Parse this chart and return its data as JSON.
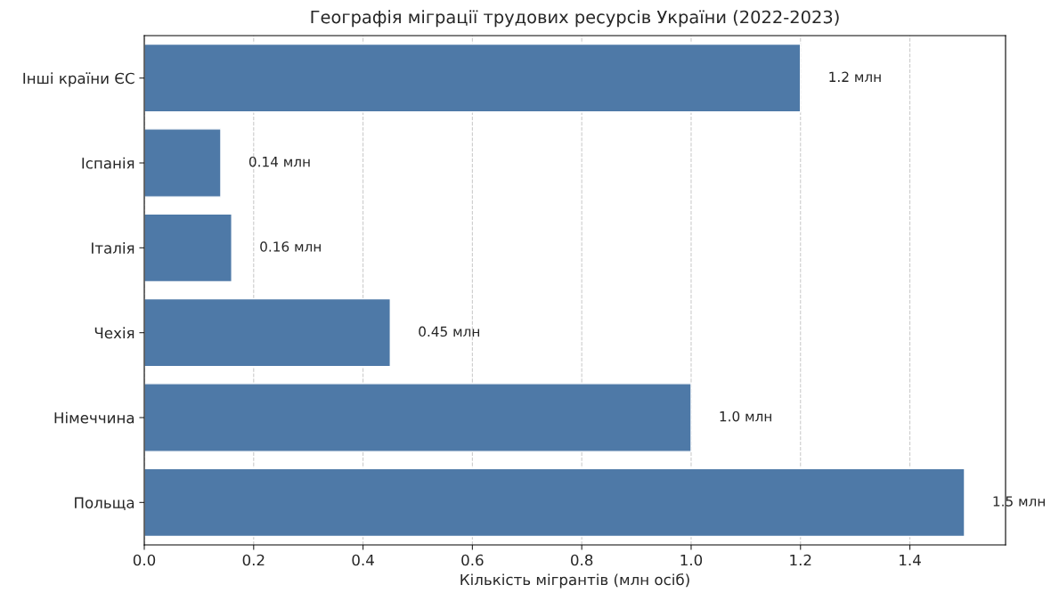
{
  "chart_data": {
    "type": "bar",
    "orientation": "horizontal",
    "title": "Географія міграції трудових ресурсів України (2022-2023)",
    "xlabel": "Кількість мігрантів (млн осіб)",
    "categories": [
      "Інші країни ЄС",
      "Іспанія",
      "Італія",
      "Чехія",
      "Німеччина",
      "Польща"
    ],
    "values": [
      1.2,
      0.14,
      0.16,
      0.45,
      1.0,
      1.5
    ],
    "color": "#4e79a7",
    "value_labels": [
      "1.2 млн",
      "0.14 млн",
      "0.16 млн",
      "0.45 млн",
      "1.0 млн",
      "1.5 млн"
    ],
    "xlim": [
      0,
      1.575
    ],
    "xticks": [
      {
        "value": 0,
        "label": "0.0"
      },
      0.2,
      0.4,
      0.6,
      0.8,
      {
        "value": 1,
        "label": "1.0"
      },
      1.2,
      1.4
    ],
    "grid": "x"
  }
}
